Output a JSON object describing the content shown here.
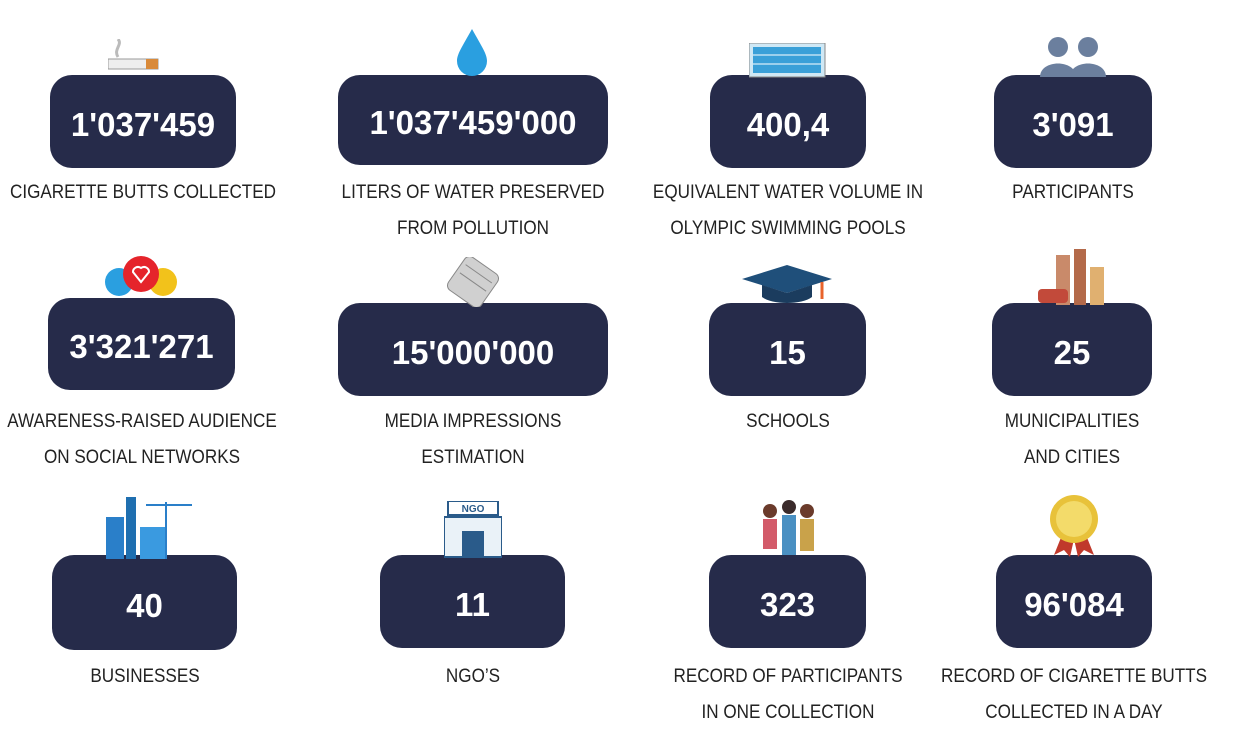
{
  "items": [
    {
      "value": "1'037'459",
      "label": [
        "CIGARETTE BUTTS COLLECTED"
      ]
    },
    {
      "value": "1'037'459'000",
      "label": [
        "LITERS OF WATER PRESERVED",
        "FROM POLLUTION"
      ]
    },
    {
      "value": "400,4",
      "label": [
        "EQUIVALENT WATER VOLUME IN",
        "OLYMPIC SWIMMING POOLS"
      ]
    },
    {
      "value": "3'091",
      "label": [
        "PARTICIPANTS"
      ]
    },
    {
      "value": "3'321'271",
      "label": [
        "AWARENESS-RAISED AUDIENCE",
        "ON SOCIAL NETWORKS"
      ]
    },
    {
      "value": "15'000'000",
      "label": [
        "MEDIA IMPRESSIONS",
        "ESTIMATION"
      ]
    },
    {
      "value": "15",
      "label": [
        "SCHOOLS"
      ]
    },
    {
      "value": "25",
      "label": [
        "MUNICIPALITIES",
        "AND CITIES"
      ]
    },
    {
      "value": "40",
      "label": [
        "BUSINESSES"
      ]
    },
    {
      "value": "11",
      "label": [
        "NGO’S"
      ]
    },
    {
      "value": "323",
      "label": [
        "RECORD OF PARTICIPANTS",
        "IN ONE COLLECTION"
      ]
    },
    {
      "value": "96'084",
      "label": [
        "RECORD OF CIGARETTE BUTTS",
        "COLLECTED IN A DAY"
      ]
    }
  ]
}
